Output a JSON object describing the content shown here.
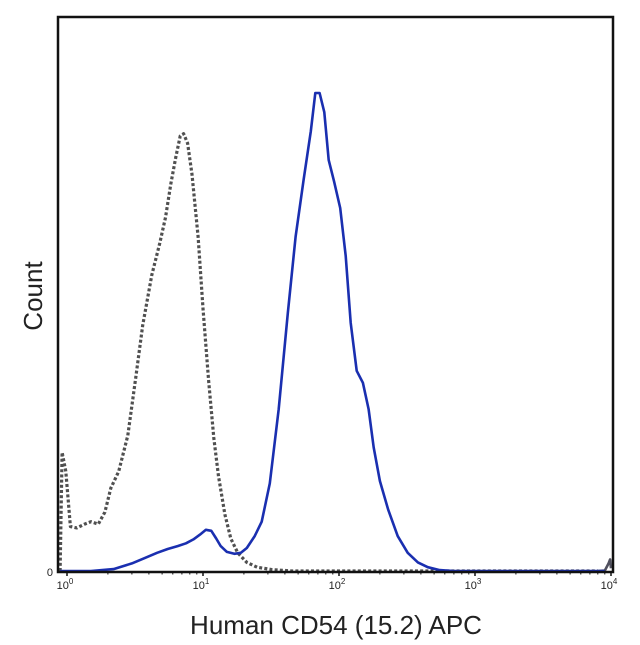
{
  "chart_data": {
    "type": "line",
    "title": "",
    "xlabel": "Human CD54 (15.2) APC",
    "ylabel": "Count",
    "x_scale": "log",
    "xlim": [
      1,
      10000
    ],
    "ylim": [
      0,
      100
    ],
    "grid": false,
    "legend": "none",
    "x_tick_labels": [
      {
        "value": 1,
        "base": "10",
        "exp": "0"
      },
      {
        "value": 10,
        "base": "10",
        "exp": "1"
      },
      {
        "value": 100,
        "base": "10",
        "exp": "2"
      },
      {
        "value": 1000,
        "base": "10",
        "exp": "3"
      },
      {
        "value": 10000,
        "base": "10",
        "exp": "4"
      }
    ],
    "y_tick_labels": [
      {
        "value": 0,
        "label": "0"
      }
    ],
    "series": [
      {
        "style": "dotted",
        "color": "#505050",
        "points": [
          [
            0.89,
            0
          ],
          [
            0.92,
            25
          ],
          [
            0.98,
            21
          ],
          [
            1.06,
            9.5
          ],
          [
            1.18,
            9.2
          ],
          [
            1.35,
            10.0
          ],
          [
            1.5,
            10.5
          ],
          [
            1.7,
            10.0
          ],
          [
            1.9,
            12.5
          ],
          [
            2.1,
            17.5
          ],
          [
            2.4,
            21.0
          ],
          [
            2.8,
            28.5
          ],
          [
            3.2,
            40.5
          ],
          [
            3.6,
            51.5
          ],
          [
            4.2,
            62.0
          ],
          [
            4.8,
            68.5
          ],
          [
            5.3,
            74.0
          ],
          [
            5.8,
            81.0
          ],
          [
            6.3,
            86.5
          ],
          [
            6.8,
            91.0
          ],
          [
            7.2,
            91.5
          ],
          [
            7.7,
            89.5
          ],
          [
            8.3,
            83.0
          ],
          [
            9.2,
            70.0
          ],
          [
            10.0,
            55.0
          ],
          [
            11.0,
            40.0
          ],
          [
            12.0,
            28.0
          ],
          [
            13.0,
            20.0
          ],
          [
            14.5,
            12.0
          ],
          [
            16.0,
            7.0
          ],
          [
            18.0,
            4.0
          ],
          [
            21.0,
            2.0
          ],
          [
            25.0,
            1.0
          ],
          [
            32.0,
            0.5
          ],
          [
            45.0,
            0.2
          ],
          [
            70.0,
            0.0
          ],
          [
            200.0,
            0.0
          ],
          [
            1000.0,
            0.0
          ],
          [
            8000.0,
            0.0
          ]
        ]
      },
      {
        "style": "solid",
        "color": "#50505e",
        "points": [
          [
            8000.0,
            0.0
          ],
          [
            9000.0,
            0.3
          ],
          [
            9600.0,
            1.8
          ],
          [
            9850.0,
            2.6
          ],
          [
            10000.0,
            0.8
          ]
        ]
      },
      {
        "style": "solid",
        "color": "#1a2fb0",
        "points": [
          [
            0.89,
            0.0
          ],
          [
            1.5,
            0.1
          ],
          [
            2.2,
            0.6
          ],
          [
            3.0,
            1.8
          ],
          [
            3.8,
            3.0
          ],
          [
            4.6,
            4.0
          ],
          [
            5.5,
            4.8
          ],
          [
            6.5,
            5.4
          ],
          [
            7.5,
            6.0
          ],
          [
            8.5,
            6.8
          ],
          [
            9.5,
            7.8
          ],
          [
            10.5,
            8.8
          ],
          [
            11.5,
            8.6
          ],
          [
            12.5,
            7.0
          ],
          [
            13.5,
            5.4
          ],
          [
            15.0,
            4.2
          ],
          [
            17.0,
            3.8
          ],
          [
            19.0,
            4.0
          ],
          [
            21.0,
            5.0
          ],
          [
            24.0,
            7.5
          ],
          [
            27.0,
            10.5
          ],
          [
            31.0,
            18.5
          ],
          [
            36.0,
            34.0
          ],
          [
            42.0,
            54.0
          ],
          [
            48.0,
            70.0
          ],
          [
            55.0,
            82.0
          ],
          [
            62.0,
            92.0
          ],
          [
            67.0,
            100.0
          ],
          [
            72.0,
            100.0
          ],
          [
            78.0,
            96.0
          ],
          [
            84.0,
            86.0
          ],
          [
            92.0,
            81.5
          ],
          [
            102.0,
            76.0
          ],
          [
            112.0,
            66.0
          ],
          [
            122.0,
            52.0
          ],
          [
            135.0,
            42.0
          ],
          [
            150.0,
            39.5
          ],
          [
            165.0,
            34.0
          ],
          [
            180.0,
            26.0
          ],
          [
            200.0,
            19.0
          ],
          [
            230.0,
            13.0
          ],
          [
            270.0,
            7.5
          ],
          [
            320.0,
            4.0
          ],
          [
            380.0,
            2.0
          ],
          [
            450.0,
            1.0
          ],
          [
            550.0,
            0.4
          ],
          [
            700.0,
            0.0
          ],
          [
            2000.0,
            0.0
          ],
          [
            9000.0,
            0.0
          ]
        ]
      }
    ]
  }
}
